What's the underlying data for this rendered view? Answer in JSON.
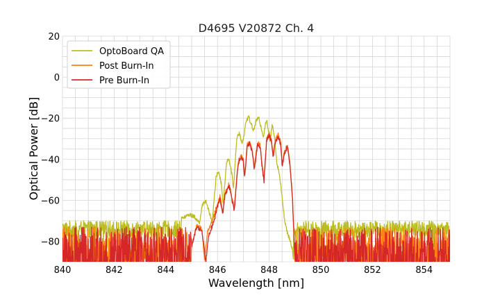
{
  "chart_data": {
    "type": "line",
    "title": "D4695 V20872 Ch. 4",
    "xlabel": "Wavelength [nm]",
    "ylabel": "Optical Power [dB]",
    "xlim": [
      840,
      855
    ],
    "ylim": [
      -90,
      20
    ],
    "xticks": [
      840,
      842,
      844,
      846,
      848,
      850,
      852,
      854
    ],
    "yticks": [
      20,
      0,
      -20,
      -40,
      -60,
      -80
    ],
    "grid": true,
    "legend_position": "top-left",
    "noise_floor": -90,
    "series": [
      {
        "name": "OptoBoard QA",
        "color": "#bcbd22",
        "noise_level": -73,
        "noise_range": [
          -78,
          -70
        ],
        "spectrum_window": [
          844.6,
          848.95
        ],
        "points": [
          [
            840.0,
            -73
          ],
          [
            844.0,
            -72
          ],
          [
            844.6,
            -69
          ],
          [
            844.9,
            -67
          ],
          [
            845.1,
            -68
          ],
          [
            845.3,
            -71
          ],
          [
            845.4,
            -63
          ],
          [
            845.55,
            -60
          ],
          [
            845.7,
            -67
          ],
          [
            845.8,
            -70
          ],
          [
            845.95,
            -48
          ],
          [
            846.05,
            -46
          ],
          [
            846.15,
            -52
          ],
          [
            846.22,
            -62
          ],
          [
            846.35,
            -41
          ],
          [
            846.45,
            -40
          ],
          [
            846.55,
            -47
          ],
          [
            846.62,
            -54
          ],
          [
            846.75,
            -29
          ],
          [
            846.85,
            -27
          ],
          [
            846.95,
            -33
          ],
          [
            847.0,
            -30
          ],
          [
            847.1,
            -22
          ],
          [
            847.2,
            -19
          ],
          [
            847.3,
            -23
          ],
          [
            847.4,
            -26
          ],
          [
            847.5,
            -21
          ],
          [
            847.6,
            -20
          ],
          [
            847.7,
            -25
          ],
          [
            847.78,
            -29
          ],
          [
            847.85,
            -23
          ],
          [
            847.9,
            -21
          ],
          [
            847.97,
            -26
          ],
          [
            848.03,
            -32
          ],
          [
            848.12,
            -23
          ],
          [
            848.2,
            -28
          ],
          [
            848.3,
            -42
          ],
          [
            848.38,
            -46
          ],
          [
            848.5,
            -58
          ],
          [
            848.6,
            -70
          ],
          [
            848.7,
            -76
          ],
          [
            848.8,
            -79
          ],
          [
            848.9,
            -84
          ],
          [
            848.95,
            -90
          ],
          [
            849.0,
            -73
          ],
          [
            855.0,
            -73
          ]
        ]
      },
      {
        "name": "Post Burn-In",
        "color": "#ff7f0e",
        "noise_level": -82,
        "noise_range": [
          -90,
          -73
        ],
        "spectrum_window": [
          845.0,
          849.0
        ],
        "points": [
          [
            840.0,
            -82
          ],
          [
            845.0,
            -82
          ],
          [
            845.2,
            -72
          ],
          [
            845.4,
            -74
          ],
          [
            845.5,
            -90
          ],
          [
            845.6,
            -76
          ],
          [
            845.8,
            -70
          ],
          [
            846.0,
            -62
          ],
          [
            846.1,
            -58
          ],
          [
            846.2,
            -66
          ],
          [
            846.3,
            -56
          ],
          [
            846.45,
            -52
          ],
          [
            846.55,
            -58
          ],
          [
            846.65,
            -64
          ],
          [
            846.8,
            -41
          ],
          [
            846.9,
            -38
          ],
          [
            847.0,
            -40
          ],
          [
            847.05,
            -48
          ],
          [
            847.15,
            -33
          ],
          [
            847.25,
            -32
          ],
          [
            847.35,
            -36
          ],
          [
            847.42,
            -44
          ],
          [
            847.55,
            -32
          ],
          [
            847.65,
            -33
          ],
          [
            847.72,
            -42
          ],
          [
            847.8,
            -50
          ],
          [
            847.9,
            -30
          ],
          [
            848.0,
            -27
          ],
          [
            848.1,
            -31
          ],
          [
            848.15,
            -38
          ],
          [
            848.25,
            -30
          ],
          [
            848.35,
            -28
          ],
          [
            848.45,
            -32
          ],
          [
            848.5,
            -42
          ],
          [
            848.6,
            -36
          ],
          [
            848.7,
            -33
          ],
          [
            848.8,
            -41
          ],
          [
            848.9,
            -58
          ],
          [
            849.0,
            -90
          ],
          [
            849.05,
            -82
          ],
          [
            855.0,
            -82
          ]
        ]
      },
      {
        "name": "Pre Burn-In",
        "color": "#d62728",
        "noise_level": -82,
        "noise_range": [
          -90,
          -73
        ],
        "spectrum_window": [
          845.0,
          849.0
        ],
        "points": [
          [
            840.0,
            -82
          ],
          [
            845.0,
            -82
          ],
          [
            845.2,
            -73
          ],
          [
            845.4,
            -75
          ],
          [
            845.55,
            -90
          ],
          [
            845.65,
            -77
          ],
          [
            845.85,
            -71
          ],
          [
            846.0,
            -63
          ],
          [
            846.1,
            -59
          ],
          [
            846.2,
            -67
          ],
          [
            846.3,
            -57
          ],
          [
            846.45,
            -53
          ],
          [
            846.55,
            -59
          ],
          [
            846.65,
            -65
          ],
          [
            846.8,
            -42
          ],
          [
            846.9,
            -39
          ],
          [
            847.0,
            -41
          ],
          [
            847.05,
            -49
          ],
          [
            847.15,
            -34
          ],
          [
            847.25,
            -32
          ],
          [
            847.35,
            -37
          ],
          [
            847.42,
            -45
          ],
          [
            847.55,
            -33
          ],
          [
            847.65,
            -34
          ],
          [
            847.72,
            -43
          ],
          [
            847.8,
            -51
          ],
          [
            847.9,
            -31
          ],
          [
            848.0,
            -28
          ],
          [
            848.1,
            -32
          ],
          [
            848.15,
            -39
          ],
          [
            848.25,
            -31
          ],
          [
            848.35,
            -29
          ],
          [
            848.45,
            -33
          ],
          [
            848.5,
            -43
          ],
          [
            848.6,
            -37
          ],
          [
            848.7,
            -34
          ],
          [
            848.8,
            -42
          ],
          [
            848.9,
            -59
          ],
          [
            849.0,
            -90
          ],
          [
            849.05,
            -82
          ],
          [
            855.0,
            -82
          ]
        ]
      }
    ]
  }
}
